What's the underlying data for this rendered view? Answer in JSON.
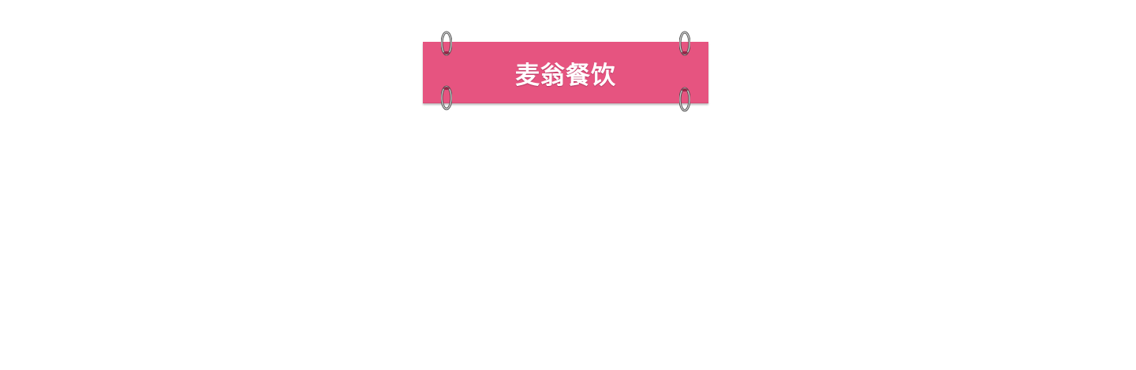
{
  "banner": {
    "title": "麦翁餐饮",
    "background_color": "#e65480",
    "text_color": "#ffffff"
  },
  "rings": [
    {
      "name": "ring-top-left-icon"
    },
    {
      "name": "ring-bottom-left-icon"
    },
    {
      "name": "ring-top-right-icon"
    },
    {
      "name": "ring-bottom-right-icon"
    }
  ]
}
